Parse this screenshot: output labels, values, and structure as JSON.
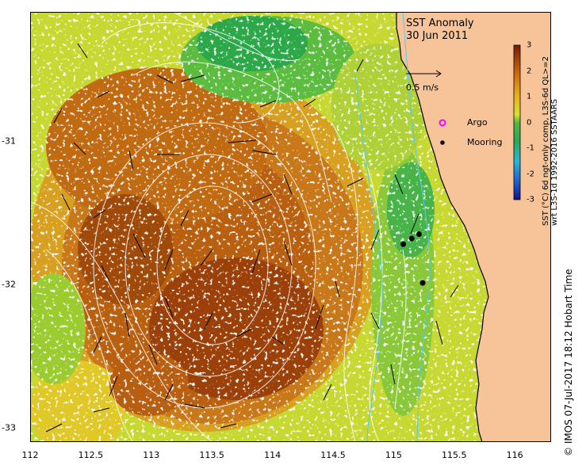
{
  "title": "SST Anomaly",
  "date": "30 Jun 2011",
  "x_ticks": [
    "112",
    "112.5",
    "113",
    "113.5",
    "114",
    "114.5",
    "115",
    "115.5",
    "116"
  ],
  "y_ticks": [
    "-31",
    "-32",
    "-33"
  ],
  "speed_reference": "0.5 m/s",
  "legend": {
    "argo_label": "Argo",
    "mooring_label": "Mooring"
  },
  "colorbar": {
    "ticks": [
      "3",
      "2",
      "1",
      "0",
      "-1",
      "-2",
      "-3"
    ],
    "label_line1": "SST (°C) 6d ngt-only comp, L3S-6d QL>=2",
    "label_line2": "wrt L3S-1d 1992-2016 SSTAARS"
  },
  "credit": "© IMOS 07-Jul-2017 18:12 Hobart Time",
  "colors": {
    "land": "#f7c49a",
    "warm": "#c8640a",
    "hot": "#8c3008",
    "neutral": "#c8d832",
    "cool": "#3ab050",
    "contour": "#ffffff"
  },
  "chart_data": {
    "type": "heatmap",
    "title": "SST Anomaly",
    "subtitle": "30 Jun 2011",
    "xlim": [
      112,
      116.3
    ],
    "ylim": [
      -33.1,
      -30.1
    ],
    "colorbar_range": [
      -3,
      3
    ],
    "moorings": [
      [
        115.08,
        -31.72
      ],
      [
        115.15,
        -31.68
      ],
      [
        115.21,
        -31.65
      ],
      [
        115.24,
        -31.99
      ]
    ],
    "argo_floats": []
  }
}
